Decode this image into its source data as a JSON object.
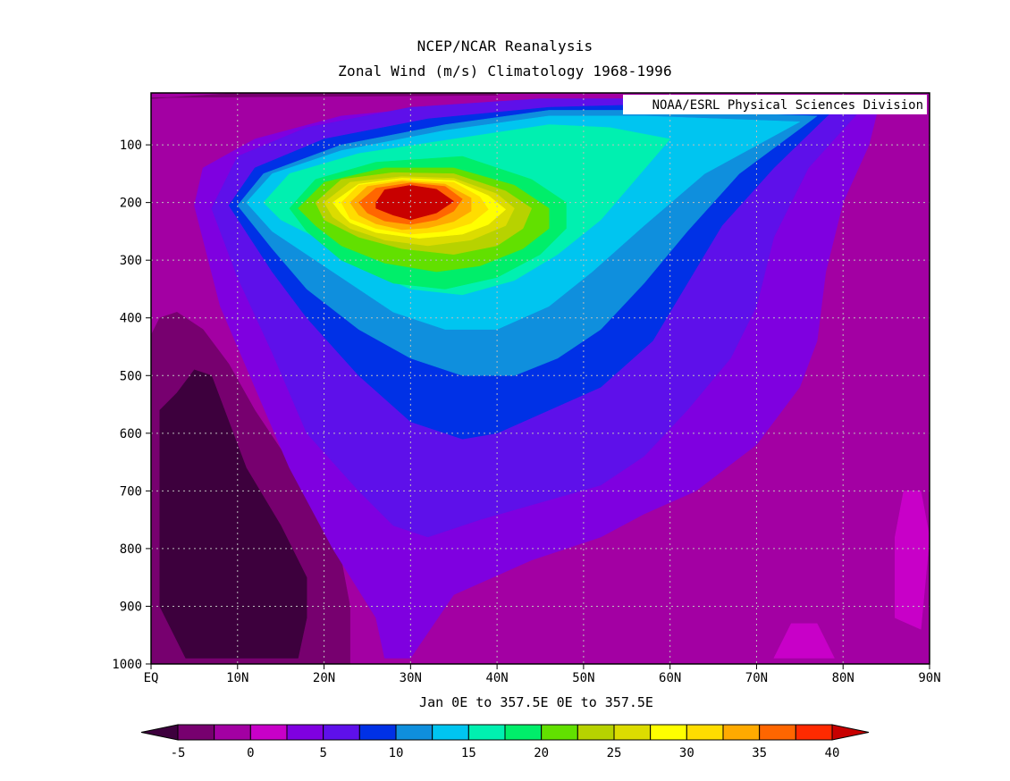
{
  "header": {
    "title": "NCEP/NCAR Reanalysis",
    "subtitle": "Zonal Wind (m/s) Climatology 1968-1996"
  },
  "watermark": "NOAA/ESRL Physical Sciences Division",
  "chart_data": {
    "type": "heatmap",
    "title": "NCEP/NCAR Reanalysis",
    "subtitle": "Zonal Wind (m/s) Climatology 1968-1996",
    "xlabel": "Jan  0E to 357.5E  0E to 357.5E",
    "ylabel": "",
    "x_ticks": [
      "EQ",
      "10N",
      "20N",
      "30N",
      "40N",
      "50N",
      "60N",
      "70N",
      "80N",
      "90N"
    ],
    "x_values": [
      0,
      10,
      20,
      30,
      40,
      50,
      60,
      70,
      80,
      90
    ],
    "y_ticks": [
      "100",
      "200",
      "300",
      "400",
      "500",
      "600",
      "700",
      "800",
      "900",
      "1000"
    ],
    "y_values": [
      100,
      200,
      300,
      400,
      500,
      600,
      700,
      800,
      900,
      1000
    ],
    "xlim": [
      0,
      90
    ],
    "ylim": [
      1000,
      10
    ],
    "grid": true,
    "colorbar": {
      "ticks": [
        "-5",
        "0",
        "5",
        "10",
        "15",
        "20",
        "25",
        "30",
        "35",
        "40"
      ],
      "levels": [
        -5,
        -2.5,
        0,
        2.5,
        5,
        7.5,
        10,
        12.5,
        15,
        17.5,
        20,
        22.5,
        25,
        27.5,
        30,
        32.5,
        35,
        37.5,
        40
      ],
      "colors": [
        "#3d003d",
        "#77006f",
        "#a300a3",
        "#c800c8",
        "#7f00e0",
        "#5e10ea",
        "#0031e6",
        "#0f8fdd",
        "#00c5f0",
        "#00f0b0",
        "#00ee6a",
        "#62e000",
        "#b7d200",
        "#dcdc00",
        "#ffff00",
        "#ffdd00",
        "#ffaa00",
        "#ff6600",
        "#ff2a00",
        "#c80000"
      ]
    },
    "contours": [
      {
        "level": -2.5,
        "color": "#77006f",
        "points": [
          [
            0,
            430
          ],
          [
            1,
            400
          ],
          [
            3,
            390
          ],
          [
            6,
            420
          ],
          [
            9,
            480
          ],
          [
            12,
            560
          ],
          [
            16,
            650
          ],
          [
            20,
            740
          ],
          [
            22,
            820
          ],
          [
            23,
            900
          ],
          [
            23,
            1000
          ],
          [
            0,
            1000
          ]
        ]
      },
      {
        "level": -5,
        "color": "#3d003d",
        "points": [
          [
            1,
            560
          ],
          [
            3,
            530
          ],
          [
            5,
            490
          ],
          [
            7,
            500
          ],
          [
            9,
            580
          ],
          [
            11,
            660
          ],
          [
            15,
            760
          ],
          [
            18,
            850
          ],
          [
            18,
            920
          ],
          [
            17,
            990
          ],
          [
            4,
            990
          ],
          [
            1,
            900
          ]
        ]
      },
      {
        "level": -2.5,
        "color": "#77006f",
        "points": [
          [
            0,
            20
          ],
          [
            10,
            10
          ],
          [
            40,
            10
          ],
          [
            40,
            14
          ],
          [
            20,
            16
          ],
          [
            0,
            18
          ]
        ]
      },
      {
        "level": 2.5,
        "color": "#c800c8",
        "points": [
          [
            87,
            700
          ],
          [
            89,
            700
          ],
          [
            90,
            780
          ],
          [
            89,
            940
          ],
          [
            86,
            920
          ],
          [
            86,
            780
          ]
        ]
      },
      {
        "level": 2.5,
        "color": "#c800c8",
        "points": [
          [
            72,
            990
          ],
          [
            74,
            930
          ],
          [
            77,
            930
          ],
          [
            79,
            990
          ]
        ]
      },
      {
        "level": 5,
        "color": "#7f00e0",
        "points": [
          [
            5,
            205
          ],
          [
            6,
            140
          ],
          [
            12,
            90
          ],
          [
            22,
            50
          ],
          [
            40,
            25
          ],
          [
            60,
            18
          ],
          [
            84,
            40
          ],
          [
            83,
            100
          ],
          [
            80,
            200
          ],
          [
            78,
            320
          ],
          [
            77,
            440
          ],
          [
            75,
            520
          ],
          [
            70,
            620
          ],
          [
            63,
            700
          ],
          [
            57,
            740
          ],
          [
            52,
            780
          ],
          [
            44,
            820
          ],
          [
            35,
            880
          ],
          [
            30,
            990
          ],
          [
            27,
            990
          ],
          [
            26,
            920
          ],
          [
            21,
            800
          ],
          [
            16,
            660
          ],
          [
            12,
            520
          ],
          [
            8,
            380
          ]
        ]
      },
      {
        "level": 7.5,
        "color": "#5e10ea",
        "points": [
          [
            7,
            210
          ],
          [
            10,
            120
          ],
          [
            18,
            70
          ],
          [
            30,
            35
          ],
          [
            45,
            20
          ],
          [
            62,
            20
          ],
          [
            82,
            40
          ],
          [
            76,
            140
          ],
          [
            72,
            260
          ],
          [
            70,
            380
          ],
          [
            67,
            470
          ],
          [
            62,
            560
          ],
          [
            57,
            640
          ],
          [
            52,
            690
          ],
          [
            45,
            720
          ],
          [
            38,
            750
          ],
          [
            32,
            780
          ],
          [
            28,
            760
          ],
          [
            24,
            700
          ],
          [
            18,
            600
          ],
          [
            14,
            460
          ],
          [
            10,
            330
          ]
        ]
      },
      {
        "level": 10,
        "color": "#0031e6",
        "points": [
          [
            9,
            205
          ],
          [
            12,
            140
          ],
          [
            20,
            90
          ],
          [
            32,
            55
          ],
          [
            46,
            35
          ],
          [
            58,
            30
          ],
          [
            79,
            38
          ],
          [
            72,
            140
          ],
          [
            66,
            240
          ],
          [
            62,
            340
          ],
          [
            58,
            440
          ],
          [
            52,
            520
          ],
          [
            46,
            560
          ],
          [
            40,
            600
          ],
          [
            36,
            610
          ],
          [
            30,
            580
          ],
          [
            24,
            500
          ],
          [
            18,
            400
          ],
          [
            14,
            320
          ]
        ]
      },
      {
        "level": 12.5,
        "color": "#0f8fdd",
        "points": [
          [
            10,
            205
          ],
          [
            13,
            150
          ],
          [
            22,
            100
          ],
          [
            34,
            65
          ],
          [
            46,
            40
          ],
          [
            57,
            40
          ],
          [
            77,
            50
          ],
          [
            68,
            150
          ],
          [
            62,
            250
          ],
          [
            57,
            340
          ],
          [
            52,
            420
          ],
          [
            47,
            470
          ],
          [
            42,
            500
          ],
          [
            36,
            500
          ],
          [
            30,
            470
          ],
          [
            24,
            420
          ],
          [
            18,
            350
          ],
          [
            14,
            280
          ]
        ]
      },
      {
        "level": 15,
        "color": "#00c5f0",
        "points": [
          [
            11,
            200
          ],
          [
            14,
            150
          ],
          [
            22,
            110
          ],
          [
            34,
            75
          ],
          [
            46,
            50
          ],
          [
            57,
            50
          ],
          [
            75,
            60
          ],
          [
            64,
            150
          ],
          [
            57,
            240
          ],
          [
            51,
            320
          ],
          [
            46,
            380
          ],
          [
            40,
            420
          ],
          [
            34,
            420
          ],
          [
            28,
            390
          ],
          [
            23,
            340
          ],
          [
            18,
            290
          ],
          [
            14,
            250
          ]
        ]
      },
      {
        "level": 17.5,
        "color": "#00f0b0",
        "points": [
          [
            13,
            200
          ],
          [
            16,
            150
          ],
          [
            24,
            115
          ],
          [
            35,
            90
          ],
          [
            46,
            65
          ],
          [
            53,
            70
          ],
          [
            60,
            90
          ],
          [
            56,
            160
          ],
          [
            52,
            230
          ],
          [
            47,
            290
          ],
          [
            42,
            335
          ],
          [
            36,
            360
          ],
          [
            30,
            350
          ],
          [
            24,
            310
          ],
          [
            19,
            260
          ],
          [
            15,
            230
          ]
        ]
      },
      {
        "level": 20,
        "color": "#00ee6a",
        "points": [
          [
            16,
            210
          ],
          [
            19,
            160
          ],
          [
            26,
            130
          ],
          [
            36,
            120
          ],
          [
            44,
            160
          ],
          [
            48,
            200
          ],
          [
            48,
            245
          ],
          [
            45,
            290
          ],
          [
            40,
            330
          ],
          [
            34,
            350
          ],
          [
            28,
            340
          ],
          [
            22,
            300
          ],
          [
            18,
            250
          ]
        ]
      },
      {
        "level": 22.5,
        "color": "#62e000",
        "points": [
          [
            17,
            210
          ],
          [
            20,
            165
          ],
          [
            27,
            140
          ],
          [
            35,
            140
          ],
          [
            42,
            170
          ],
          [
            46,
            210
          ],
          [
            46,
            245
          ],
          [
            43,
            280
          ],
          [
            38,
            310
          ],
          [
            33,
            320
          ],
          [
            27,
            305
          ],
          [
            22,
            275
          ],
          [
            19,
            240
          ]
        ]
      },
      {
        "level": 25,
        "color": "#b7d200",
        "points": [
          [
            19,
            200
          ],
          [
            22,
            160
          ],
          [
            28,
            148
          ],
          [
            35,
            150
          ],
          [
            41,
            180
          ],
          [
            44,
            210
          ],
          [
            43,
            245
          ],
          [
            40,
            275
          ],
          [
            35,
            290
          ],
          [
            29,
            280
          ],
          [
            24,
            260
          ],
          [
            20,
            230
          ]
        ]
      },
      {
        "level": 27.5,
        "color": "#dcdc00",
        "points": [
          [
            20,
            200
          ],
          [
            23,
            165
          ],
          [
            29,
            155
          ],
          [
            35,
            158
          ],
          [
            40,
            185
          ],
          [
            42,
            210
          ],
          [
            41,
            240
          ],
          [
            37,
            265
          ],
          [
            32,
            275
          ],
          [
            27,
            265
          ],
          [
            23,
            245
          ],
          [
            21,
            225
          ]
        ]
      },
      {
        "level": 30,
        "color": "#ffff00",
        "points": [
          [
            21,
            200
          ],
          [
            24,
            168
          ],
          [
            29,
            158
          ],
          [
            35,
            162
          ],
          [
            39,
            188
          ],
          [
            41,
            212
          ],
          [
            39,
            238
          ],
          [
            36,
            255
          ],
          [
            31,
            262
          ],
          [
            26,
            252
          ],
          [
            23,
            235
          ],
          [
            22,
            220
          ]
        ]
      },
      {
        "level": 32.5,
        "color": "#ffdd00",
        "points": [
          [
            22,
            200
          ],
          [
            24,
            170
          ],
          [
            29,
            160
          ],
          [
            35,
            165
          ],
          [
            38,
            190
          ],
          [
            39,
            212
          ],
          [
            37,
            236
          ],
          [
            34,
            250
          ],
          [
            30,
            255
          ],
          [
            26,
            245
          ],
          [
            23,
            228
          ]
        ]
      },
      {
        "level": 35,
        "color": "#ffaa00",
        "points": [
          [
            23,
            200
          ],
          [
            25,
            172
          ],
          [
            29,
            163
          ],
          [
            34,
            168
          ],
          [
            37,
            192
          ],
          [
            37,
            215
          ],
          [
            35,
            233
          ],
          [
            32,
            244
          ],
          [
            29,
            247
          ],
          [
            26,
            237
          ],
          [
            24,
            222
          ]
        ]
      },
      {
        "level": 37.5,
        "color": "#ff6600",
        "points": [
          [
            24,
            200
          ],
          [
            26,
            175
          ],
          [
            30,
            166
          ],
          [
            34,
            172
          ],
          [
            36,
            194
          ],
          [
            35,
            215
          ],
          [
            33,
            230
          ],
          [
            30,
            238
          ],
          [
            27,
            232
          ],
          [
            25,
            218
          ]
        ]
      },
      {
        "level": 40,
        "color": "#c80000",
        "points": [
          [
            26,
            200
          ],
          [
            27,
            178
          ],
          [
            30,
            170
          ],
          [
            33,
            177
          ],
          [
            35,
            198
          ],
          [
            33,
            218
          ],
          [
            30,
            230
          ],
          [
            28,
            222
          ],
          [
            26,
            210
          ]
        ]
      }
    ]
  }
}
